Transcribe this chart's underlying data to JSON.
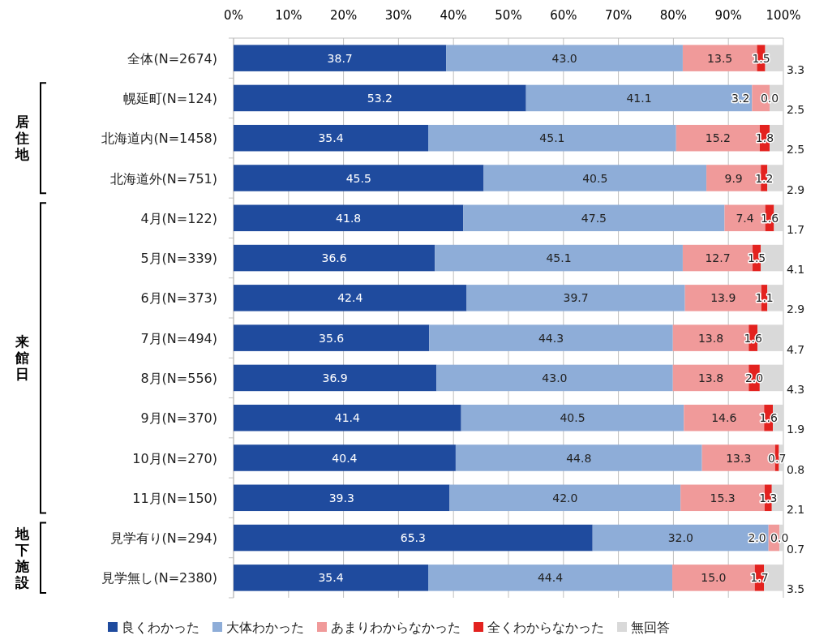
{
  "chart_data": {
    "type": "bar",
    "orientation": "horizontal",
    "stacked": true,
    "grid": "x",
    "legend": "bottom",
    "categories": [
      "全体(N=2674)",
      "幌延町(N=124)",
      "北海道内(N=1458)",
      "北海道外(N=751)",
      "4月(N=122)",
      "5月(N=339)",
      "6月(N=373)",
      "7月(N=494)",
      "8月(N=556)",
      "9月(N=370)",
      "10月(N=270)",
      "11月(N=150)",
      "見学有り(N=294)",
      "見学無し(N=2380)"
    ],
    "xlim": [
      0,
      100
    ],
    "xticks": [
      {
        "value": 0,
        "label": "0%"
      },
      {
        "value": 10,
        "label": "10%"
      },
      {
        "value": 20,
        "label": "20%"
      },
      {
        "value": 30,
        "label": "30%"
      },
      {
        "value": 40,
        "label": "40%"
      },
      {
        "value": 50,
        "label": "50%"
      },
      {
        "value": 60,
        "label": "60%"
      },
      {
        "value": 70,
        "label": "70%"
      },
      {
        "value": 80,
        "label": "80%"
      },
      {
        "value": 90,
        "label": "90%"
      },
      {
        "value": 100,
        "label": "100%"
      }
    ],
    "series": [
      {
        "name": "良くわかった",
        "color": "#1f4b9e",
        "values": [
          38.7,
          53.2,
          35.4,
          45.5,
          41.8,
          36.6,
          42.4,
          35.6,
          36.9,
          41.4,
          40.4,
          39.3,
          65.3,
          35.4
        ],
        "value_labels": [
          "38.7",
          "53.2",
          "35.4",
          "45.5",
          "41.8",
          "36.6",
          "42.4",
          "35.6",
          "36.9",
          "41.4",
          "40.4",
          "39.3",
          "65.3",
          "35.4"
        ]
      },
      {
        "name": "大体わかった",
        "color": "#8eadd8",
        "values": [
          43.0,
          41.1,
          45.1,
          40.5,
          47.5,
          45.1,
          39.7,
          44.3,
          43.0,
          40.5,
          44.8,
          42.0,
          32.0,
          44.4
        ],
        "value_labels": [
          "43.0",
          "41.1",
          "45.1",
          "40.5",
          "47.5",
          "45.1",
          "39.7",
          "44.3",
          "43.0",
          "40.5",
          "44.8",
          "42.0",
          "32.0",
          "44.4"
        ]
      },
      {
        "name": "あまりわからなかった",
        "color": "#f09a9a",
        "values": [
          13.5,
          3.2,
          15.2,
          9.9,
          7.4,
          12.7,
          13.9,
          13.8,
          13.8,
          14.6,
          13.3,
          15.3,
          2.0,
          15.0
        ],
        "value_labels": [
          "13.5",
          "3.2",
          "15.2",
          "9.9",
          "7.4",
          "12.7",
          "13.9",
          "13.8",
          "13.8",
          "14.6",
          "13.3",
          "15.3",
          "2.0",
          "15.0"
        ]
      },
      {
        "name": "全くわからなかった",
        "color": "#e3221f",
        "values": [
          1.5,
          0.0,
          1.8,
          1.2,
          1.6,
          1.5,
          1.1,
          1.6,
          2.0,
          1.6,
          0.7,
          1.3,
          0.0,
          1.7
        ],
        "value_labels": [
          "1.5",
          "0.0",
          "1.8",
          "1.2",
          "1.6",
          "1.5",
          "1.1",
          "1.6",
          "2.0",
          "1.6",
          "0.7",
          "1.3",
          "0.0",
          "1.7"
        ]
      },
      {
        "name": "無回答",
        "color": "#d9d9d9",
        "values": [
          3.3,
          2.5,
          2.5,
          2.9,
          1.7,
          4.1,
          2.9,
          4.7,
          4.3,
          1.9,
          0.8,
          2.1,
          0.7,
          3.5
        ],
        "value_labels": [
          "3.3",
          "2.5",
          "2.5",
          "2.9",
          "1.7",
          "4.1",
          "2.9",
          "4.7",
          "4.3",
          "1.9",
          "0.8",
          "2.1",
          "0.7",
          "3.5"
        ]
      }
    ],
    "annotations": [
      "居住地",
      "来館日",
      "地下施設"
    ]
  }
}
